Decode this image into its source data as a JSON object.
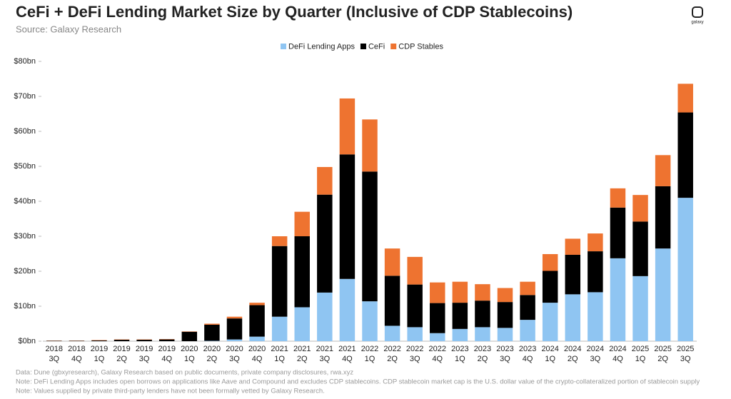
{
  "chart_data": {
    "type": "stacked-bar",
    "title": "CeFi + DeFi Lending Market Size by Quarter (Inclusive of CDP Stablecoins)",
    "subtitle": "Source: Galaxy Research",
    "brand": "galaxy",
    "categories": [
      [
        "2018",
        "3Q"
      ],
      [
        "2018",
        "4Q"
      ],
      [
        "2019",
        "1Q"
      ],
      [
        "2019",
        "2Q"
      ],
      [
        "2019",
        "3Q"
      ],
      [
        "2019",
        "4Q"
      ],
      [
        "2020",
        "1Q"
      ],
      [
        "2020",
        "2Q"
      ],
      [
        "2020",
        "3Q"
      ],
      [
        "2020",
        "4Q"
      ],
      [
        "2021",
        "1Q"
      ],
      [
        "2021",
        "2Q"
      ],
      [
        "2021",
        "3Q"
      ],
      [
        "2021",
        "4Q"
      ],
      [
        "2022",
        "1Q"
      ],
      [
        "2022",
        "2Q"
      ],
      [
        "2022",
        "3Q"
      ],
      [
        "2022",
        "4Q"
      ],
      [
        "2023",
        "1Q"
      ],
      [
        "2023",
        "2Q"
      ],
      [
        "2023",
        "3Q"
      ],
      [
        "2023",
        "4Q"
      ],
      [
        "2024",
        "1Q"
      ],
      [
        "2024",
        "2Q"
      ],
      [
        "2024",
        "3Q"
      ],
      [
        "2024",
        "4Q"
      ],
      [
        "2025",
        "1Q"
      ],
      [
        "2025",
        "2Q"
      ],
      [
        "2025",
        "3Q"
      ]
    ],
    "series": [
      {
        "name": "DeFi Lending Apps",
        "color": "#8fc5f2",
        "values": [
          0,
          0,
          0,
          0,
          0,
          0,
          0,
          0.1,
          0.5,
          1.3,
          7.0,
          9.7,
          13.9,
          17.8,
          11.4,
          4.4,
          4.0,
          2.3,
          3.5,
          4.0,
          3.8,
          6.1,
          11.0,
          13.4,
          14.0,
          23.7,
          18.6,
          26.5,
          41.0
        ]
      },
      {
        "name": "CeFi",
        "color": "#000000",
        "values": [
          0.1,
          0.1,
          0.2,
          0.4,
          0.4,
          0.5,
          2.7,
          4.6,
          6.0,
          9.0,
          20.2,
          20.3,
          28.0,
          35.6,
          37.1,
          14.3,
          12.2,
          8.6,
          7.5,
          7.6,
          7.4,
          7.1,
          9.1,
          11.3,
          11.7,
          14.5,
          15.6,
          17.8,
          24.4
        ]
      },
      {
        "name": "CDP Stables",
        "color": "#ee7330",
        "values": [
          0.05,
          0.05,
          0.1,
          0.1,
          0.1,
          0.1,
          0.1,
          0.3,
          0.5,
          0.7,
          2.8,
          7.0,
          7.9,
          16.0,
          14.9,
          7.8,
          7.9,
          5.9,
          6.0,
          4.7,
          4.0,
          3.8,
          4.8,
          4.6,
          5.1,
          5.5,
          7.6,
          8.9,
          8.2
        ]
      }
    ],
    "ylim": [
      0,
      80
    ],
    "yticks": [
      {
        "value": 0,
        "label": "$0bn"
      },
      {
        "value": 10,
        "label": "$10bn"
      },
      {
        "value": 20,
        "label": "$20bn"
      },
      {
        "value": 30,
        "label": "$30bn"
      },
      {
        "value": 40,
        "label": "$40bn"
      },
      {
        "value": 50,
        "label": "$50bn"
      },
      {
        "value": 60,
        "label": "$60bn"
      },
      {
        "value": 70,
        "label": "$70bn"
      },
      {
        "value": 80,
        "label": "$80bn"
      }
    ],
    "grid": false,
    "legend": "top",
    "notes": [
      "Data: Dune (gbxyresearch), Galaxy Research based on public documents, private company disclosures, rwa.xyz",
      "Note: DeFi Lending Apps includes open borrows on applications like Aave and Compound and excludes CDP stablecoins. CDP stablecoin market cap is the U.S. dollar value of the crypto-collateralized portion of stablecoin supply",
      "Note: Values supplied by private third-party lenders have not been formally vetted  by Galaxy Research."
    ]
  }
}
